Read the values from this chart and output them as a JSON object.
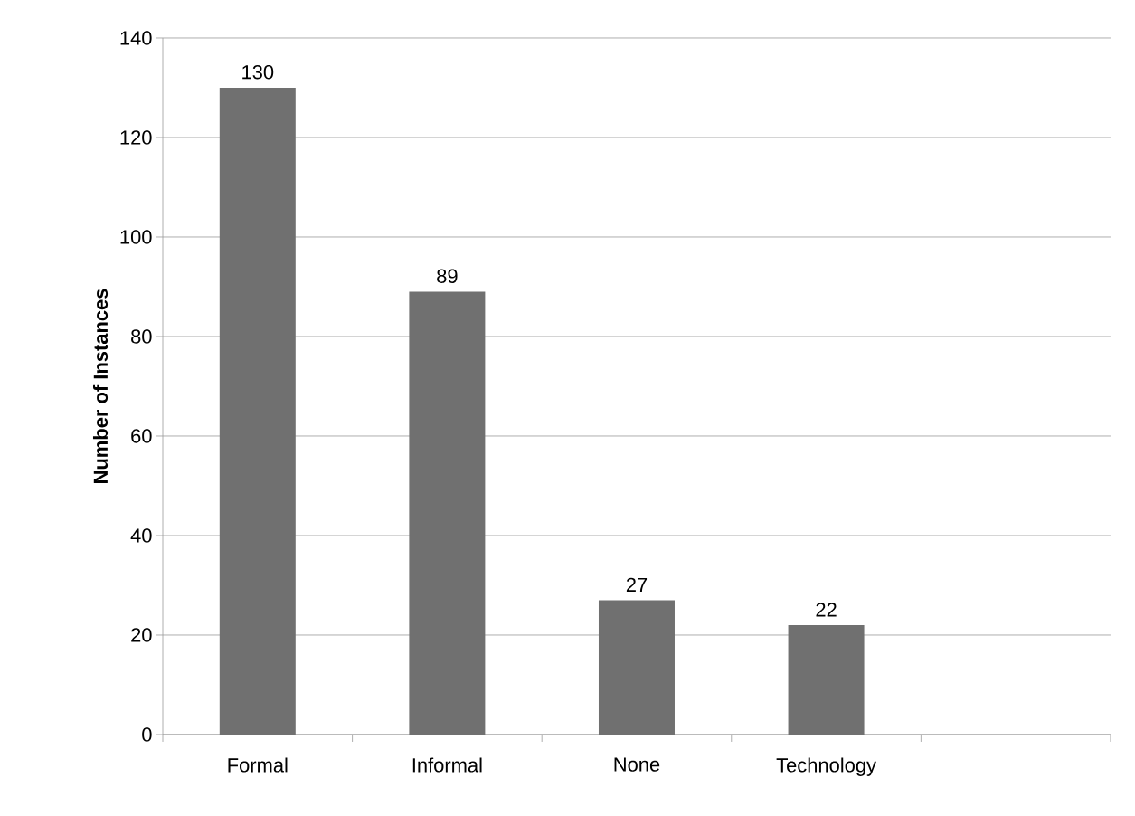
{
  "chart_data": {
    "type": "bar",
    "ylabel": "Number of Instances",
    "categories": [
      "Formal",
      "Informal",
      "None",
      "Technology",
      null
    ],
    "values": [
      130,
      89,
      27,
      22,
      null
    ],
    "color": "#707070",
    "ylim": [
      0,
      140
    ],
    "yticks": [
      0,
      20,
      40,
      60,
      80,
      100,
      120,
      140
    ],
    "grid": "y",
    "data_labels": true
  }
}
